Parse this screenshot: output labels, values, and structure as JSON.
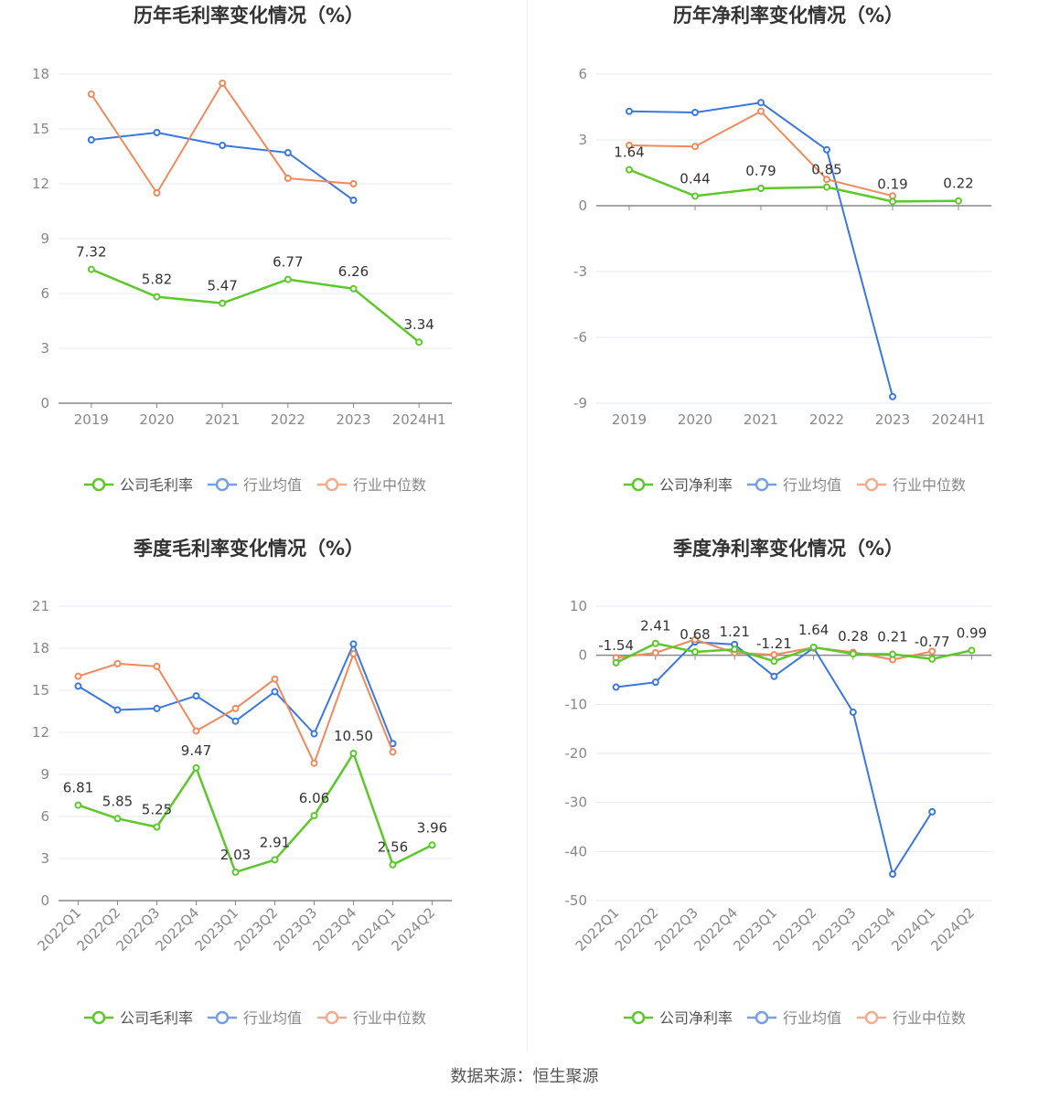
{
  "source": "数据来源：恒生聚源",
  "colors": {
    "company": "#5cc82a",
    "avg": "#3a78e0",
    "median": "#f08a5d"
  },
  "chart_data": [
    {
      "type": "line",
      "title": "历年毛利率变化情况（%）",
      "categories": [
        "2019",
        "2020",
        "2021",
        "2022",
        "2023",
        "2024H1"
      ],
      "ylim": [
        0,
        18
      ],
      "yticks": [
        0,
        3,
        6,
        9,
        12,
        15,
        18
      ],
      "grid": true,
      "legend": "bottom",
      "series": [
        {
          "name": "公司毛利率",
          "key": "company",
          "values": [
            7.32,
            5.82,
            5.47,
            6.77,
            6.26,
            3.34
          ],
          "labels": [
            "7.32",
            "5.82",
            "5.47",
            "6.77",
            "6.26",
            "3.34"
          ]
        },
        {
          "name": "行业均值",
          "key": "avg",
          "values": [
            14.4,
            14.8,
            14.1,
            13.7,
            11.1,
            null
          ]
        },
        {
          "name": "行业中位数",
          "key": "median",
          "values": [
            16.9,
            11.5,
            17.5,
            12.3,
            12.0,
            null
          ]
        }
      ]
    },
    {
      "type": "line",
      "title": "历年净利率变化情况（%）",
      "categories": [
        "2019",
        "2020",
        "2021",
        "2022",
        "2023",
        "2024H1"
      ],
      "ylim": [
        -9,
        6
      ],
      "yticks": [
        -9,
        -6,
        -3,
        0,
        3,
        6
      ],
      "grid": true,
      "legend": "bottom",
      "series": [
        {
          "name": "公司净利率",
          "key": "company",
          "values": [
            1.64,
            0.44,
            0.79,
            0.85,
            0.19,
            0.22
          ],
          "labels": [
            "1.64",
            "0.44",
            "0.79",
            "0.85",
            "0.19",
            "0.22"
          ]
        },
        {
          "name": "行业均值",
          "key": "avg",
          "values": [
            4.3,
            4.25,
            4.7,
            2.55,
            -8.7,
            null
          ]
        },
        {
          "name": "行业中位数",
          "key": "median",
          "values": [
            2.75,
            2.7,
            4.3,
            1.2,
            0.45,
            null
          ]
        }
      ]
    },
    {
      "type": "line",
      "title": "季度毛利率变化情况（%）",
      "categories": [
        "2022Q1",
        "2022Q2",
        "2022Q3",
        "2022Q4",
        "2023Q1",
        "2023Q2",
        "2023Q3",
        "2023Q4",
        "2024Q1",
        "2024Q2"
      ],
      "ylim": [
        0,
        21
      ],
      "yticks": [
        0,
        3,
        6,
        9,
        12,
        15,
        18,
        21
      ],
      "grid": true,
      "legend": "bottom",
      "series": [
        {
          "name": "公司毛利率",
          "key": "company",
          "values": [
            6.81,
            5.85,
            5.25,
            9.47,
            2.03,
            2.91,
            6.06,
            10.5,
            2.56,
            3.96
          ],
          "labels": [
            "6.81",
            "5.85",
            "5.25",
            "9.47",
            "2.03",
            "2.91",
            "6.06",
            "10.50",
            "2.56",
            "3.96"
          ]
        },
        {
          "name": "行业均值",
          "key": "avg",
          "values": [
            15.3,
            13.6,
            13.7,
            14.6,
            12.8,
            14.9,
            11.9,
            18.3,
            11.2,
            null
          ]
        },
        {
          "name": "行业中位数",
          "key": "median",
          "values": [
            16.0,
            16.9,
            16.7,
            12.1,
            13.7,
            15.8,
            9.8,
            17.6,
            10.6,
            null
          ]
        }
      ]
    },
    {
      "type": "line",
      "title": "季度净利率变化情况（%）",
      "categories": [
        "2022Q1",
        "2022Q2",
        "2022Q3",
        "2022Q4",
        "2023Q1",
        "2023Q2",
        "2023Q3",
        "2023Q4",
        "2024Q1",
        "2024Q2"
      ],
      "ylim": [
        -50,
        10
      ],
      "yticks": [
        -50,
        -40,
        -30,
        -20,
        -10,
        0,
        10
      ],
      "grid": true,
      "legend": "bottom",
      "series": [
        {
          "name": "公司净利率",
          "key": "company",
          "values": [
            -1.54,
            2.41,
            0.68,
            1.21,
            -1.21,
            1.64,
            0.28,
            0.21,
            -0.77,
            0.99
          ],
          "labels": [
            "-1.54",
            "2.41",
            "0.68",
            "1.21",
            "-1.21",
            "1.64",
            "0.28",
            "0.21",
            "-0.77",
            "0.99"
          ]
        },
        {
          "name": "行业均值",
          "key": "avg",
          "values": [
            -6.5,
            -5.5,
            2.7,
            2.2,
            -4.3,
            1.5,
            -11.6,
            -44.6,
            -31.9,
            null
          ]
        },
        {
          "name": "行业中位数",
          "key": "median",
          "values": [
            -0.5,
            0.5,
            3.2,
            0.5,
            0.1,
            1.6,
            0.6,
            -0.9,
            0.8,
            null
          ]
        }
      ]
    }
  ]
}
